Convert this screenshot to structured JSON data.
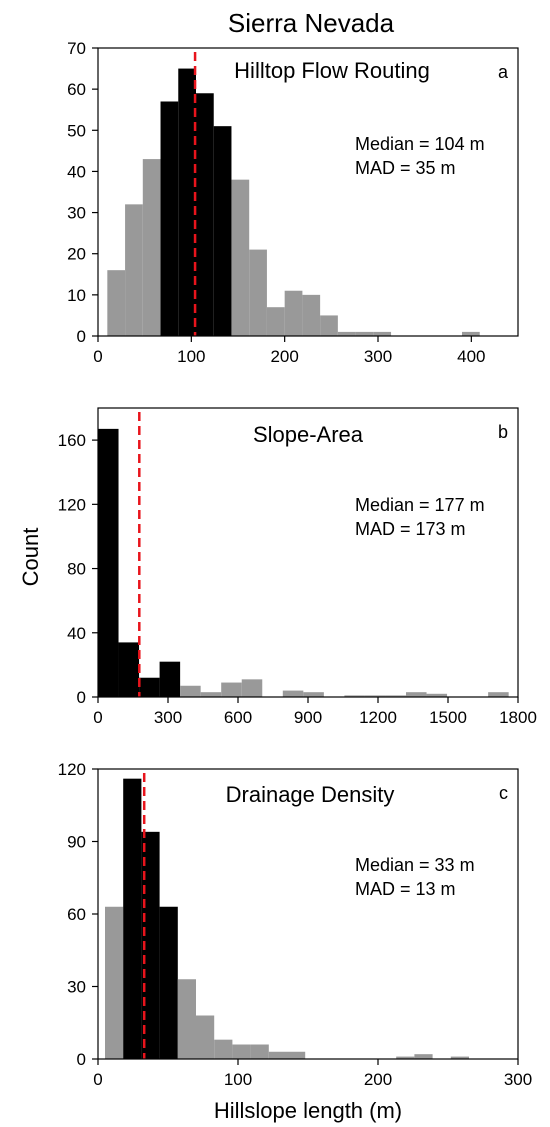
{
  "figure": {
    "title": "Sierra Nevada",
    "ylabel": "Count",
    "xlabel": "Hillslope length (m)"
  },
  "colors": {
    "gray": "#999999",
    "black": "#000000",
    "median_line": "#e8141c"
  },
  "chart_data": [
    {
      "type": "bar",
      "subtype": "histogram",
      "panel_label": "a",
      "title": "Hilltop Flow Routing",
      "stats": [
        "Median = 104 m",
        "MAD = 35 m"
      ],
      "median": 104,
      "bin_width": 19,
      "bin_starts": [
        10,
        29,
        48,
        67,
        86,
        105,
        124,
        143,
        162,
        181,
        200,
        219,
        238,
        257,
        276,
        295,
        314,
        333,
        352,
        371,
        390,
        409
      ],
      "values": [
        16,
        32,
        43,
        57,
        65,
        59,
        51,
        38,
        21,
        7,
        11,
        10,
        5,
        1,
        1,
        1,
        0,
        0,
        0,
        0,
        1,
        0
      ],
      "highlight": [
        false,
        false,
        false,
        true,
        true,
        true,
        true,
        false,
        false,
        false,
        false,
        false,
        false,
        false,
        false,
        false,
        false,
        false,
        false,
        false,
        false,
        false
      ],
      "xlim": [
        0,
        450
      ],
      "ylim": [
        0,
        70
      ],
      "xticks": [
        0,
        100,
        200,
        300,
        400
      ],
      "yticks": [
        0,
        10,
        20,
        30,
        40,
        50,
        60,
        70
      ]
    },
    {
      "type": "bar",
      "subtype": "histogram",
      "panel_label": "b",
      "title": "Slope-Area",
      "stats": [
        "Median = 177 m",
        "MAD = 173 m"
      ],
      "median": 177,
      "bin_width": 88,
      "bin_starts": [
        0,
        88,
        176,
        264,
        352,
        440,
        528,
        616,
        704,
        792,
        880,
        968,
        1056,
        1144,
        1232,
        1320,
        1408,
        1496,
        1584,
        1672
      ],
      "values": [
        167,
        34,
        12,
        22,
        7,
        3,
        9,
        11,
        0,
        4,
        3,
        0,
        1,
        1,
        1,
        3,
        2,
        0,
        0,
        3
      ],
      "highlight": [
        true,
        true,
        true,
        true,
        false,
        false,
        false,
        false,
        false,
        false,
        false,
        false,
        false,
        false,
        false,
        false,
        false,
        false,
        false,
        false
      ],
      "xlim": [
        0,
        1800
      ],
      "ylim": [
        0,
        180
      ],
      "xticks": [
        0,
        300,
        600,
        900,
        1200,
        1500,
        1800
      ],
      "yticks": [
        0,
        40,
        80,
        120,
        160
      ]
    },
    {
      "type": "bar",
      "subtype": "histogram",
      "panel_label": "c",
      "title": "Drainage Density",
      "stats": [
        "Median = 33 m",
        "MAD = 13 m"
      ],
      "median": 33,
      "bin_width": 13,
      "bin_starts": [
        5,
        18,
        31,
        44,
        57,
        70,
        83,
        96,
        109,
        122,
        135,
        148,
        161,
        174,
        187,
        200,
        213,
        226,
        239,
        252,
        265,
        278
      ],
      "values": [
        63,
        116,
        94,
        63,
        33,
        18,
        8,
        6,
        6,
        3,
        3,
        0,
        0,
        0,
        0,
        0,
        1,
        2,
        0,
        1,
        0,
        0
      ],
      "highlight": [
        false,
        true,
        true,
        true,
        false,
        false,
        false,
        false,
        false,
        false,
        false,
        false,
        false,
        false,
        false,
        false,
        false,
        false,
        false,
        false,
        false,
        false
      ],
      "xlim": [
        0,
        300
      ],
      "ylim": [
        0,
        120
      ],
      "xticks": [
        0,
        100,
        200,
        300
      ],
      "yticks": [
        0,
        30,
        60,
        90,
        120
      ]
    }
  ]
}
